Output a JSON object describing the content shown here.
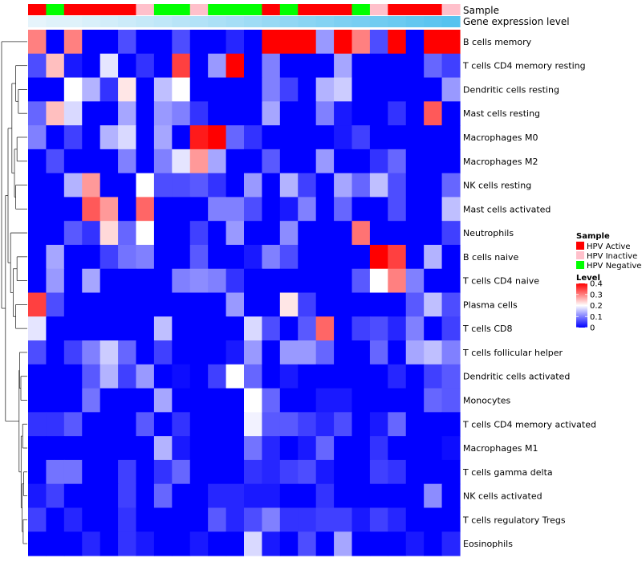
{
  "chart_data": {
    "type": "heatmap",
    "title": "",
    "annotation_rows": {
      "sample": "Sample",
      "gene_level": "Gene expression level"
    },
    "sample_groups": [
      "A",
      "N",
      "A",
      "A",
      "A",
      "A",
      "I",
      "N",
      "N",
      "I",
      "N",
      "N",
      "N",
      "A",
      "N",
      "A",
      "A",
      "A",
      "N",
      "I",
      "A",
      "A",
      "A",
      "I"
    ],
    "gene_expression_level": [
      0.02,
      0.03,
      0.03,
      0.04,
      0.05,
      0.06,
      0.07,
      0.08,
      0.09,
      0.1,
      0.11,
      0.12,
      0.13,
      0.14,
      0.15,
      0.16,
      0.17,
      0.18,
      0.19,
      0.2,
      0.21,
      0.22,
      0.23,
      0.24
    ],
    "rows": [
      "B cells memory",
      "T cells CD4 memory resting",
      "Dendritic cells resting",
      "Mast cells resting",
      "Macrophages M0",
      "Macrophages M2",
      "NK cells resting",
      "Mast cells activated",
      "Neutrophils",
      "B cells naive",
      "T cells CD4 naive",
      "Plasma cells",
      "T cells CD8",
      "T cells follicular helper",
      "Dendritic cells activated",
      "Monocytes",
      "T cells CD4 memory activated",
      "Macrophages M1",
      "T cells gamma delta",
      "NK cells activated",
      "T cells regulatory  Tregs",
      "Eosinophils"
    ],
    "values": [
      [
        0.3,
        0,
        0.3,
        0,
        0,
        0.06,
        0,
        0,
        0.06,
        0,
        0,
        0.03,
        0,
        0.4,
        0.4,
        0.4,
        0.12,
        0.4,
        0.3,
        0.06,
        0.4,
        0,
        0.4,
        0.4
      ],
      [
        0.06,
        0.25,
        0.02,
        0,
        0.18,
        0,
        0.04,
        0,
        0.35,
        0,
        0.12,
        0.4,
        0,
        0.1,
        0,
        0,
        0,
        0.13,
        0,
        0,
        0,
        0,
        0.08,
        0.05
      ],
      [
        0,
        0,
        0.2,
        0.14,
        0.04,
        0.22,
        0,
        0.15,
        0.2,
        0,
        0,
        0,
        0,
        0.1,
        0.05,
        0,
        0.14,
        0.16,
        0,
        0,
        0,
        0,
        0,
        0.12
      ],
      [
        0.08,
        0.25,
        0.17,
        0,
        0,
        0.13,
        0,
        0.12,
        0.1,
        0.04,
        0,
        0,
        0,
        0.13,
        0,
        0,
        0.1,
        0.02,
        0,
        0,
        0.04,
        0,
        0.33,
        0
      ],
      [
        0.1,
        0,
        0.05,
        0,
        0.14,
        0.17,
        0,
        0.13,
        0,
        0.38,
        0.4,
        0.08,
        0.04,
        0,
        0,
        0,
        0,
        0.02,
        0.05,
        0,
        0,
        0,
        0,
        0
      ],
      [
        0,
        0.06,
        0,
        0,
        0,
        0.1,
        0,
        0.1,
        0.18,
        0.28,
        0.13,
        0,
        0,
        0.07,
        0,
        0,
        0.12,
        0,
        0,
        0.04,
        0.08,
        0,
        0,
        0
      ],
      [
        0,
        0,
        0.14,
        0.28,
        0,
        0,
        0.2,
        0.06,
        0.06,
        0.07,
        0.04,
        0,
        0.12,
        0,
        0.14,
        0.05,
        0,
        0.13,
        0.08,
        0.15,
        0.06,
        0,
        0,
        0.08
      ],
      [
        0,
        0,
        0,
        0.33,
        0.28,
        0,
        0.32,
        0,
        0,
        0,
        0.1,
        0.1,
        0.06,
        0,
        0.02,
        0.1,
        0,
        0.08,
        0,
        0,
        0.06,
        0,
        0,
        0.15
      ],
      [
        0,
        0,
        0.07,
        0.04,
        0.23,
        0.08,
        0.2,
        0,
        0,
        0.05,
        0,
        0.12,
        0,
        0,
        0.11,
        0,
        0,
        0,
        0.31,
        0,
        0,
        0,
        0,
        0.05
      ],
      [
        0,
        0.13,
        0,
        0,
        0.05,
        0.09,
        0.1,
        0,
        0,
        0.07,
        0,
        0,
        0.02,
        0.1,
        0.06,
        0,
        0,
        0,
        0,
        0.4,
        0.35,
        0,
        0.14,
        0
      ],
      [
        0,
        0.12,
        0,
        0.13,
        0,
        0,
        0,
        0,
        0.1,
        0.11,
        0.1,
        0.04,
        0,
        0,
        0,
        0,
        0,
        0,
        0.07,
        0.2,
        0.3,
        0.1,
        0,
        0
      ],
      [
        0.35,
        0.06,
        0,
        0,
        0,
        0,
        0,
        0,
        0,
        0,
        0,
        0.12,
        0,
        0,
        0.22,
        0.05,
        0,
        0,
        0,
        0,
        0,
        0.07,
        0.15,
        0.06
      ],
      [
        0.18,
        0,
        0,
        0,
        0,
        0,
        0,
        0.15,
        0,
        0,
        0,
        0,
        0.17,
        0.06,
        0,
        0.07,
        0.32,
        0,
        0.05,
        0.06,
        0.03,
        0.1,
        0,
        0.05
      ],
      [
        0.06,
        0,
        0.05,
        0.1,
        0.16,
        0.08,
        0,
        0.05,
        0,
        0,
        0,
        0.02,
        0.12,
        0,
        0.12,
        0.12,
        0.08,
        0,
        0,
        0.08,
        0,
        0.13,
        0.15,
        0.1
      ],
      [
        0,
        0,
        0,
        0.07,
        0.14,
        0.05,
        0.12,
        0,
        0.01,
        0,
        0.05,
        0.2,
        0.08,
        0,
        0.02,
        0,
        0,
        0,
        0,
        0,
        0.03,
        0,
        0.05,
        0.07
      ],
      [
        0,
        0,
        0,
        0.09,
        0,
        0,
        0,
        0.13,
        0,
        0,
        0,
        0,
        0.2,
        0.08,
        0,
        0,
        0.02,
        0.02,
        0,
        0,
        0,
        0,
        0.08,
        0.07
      ],
      [
        0.04,
        0.04,
        0.07,
        0,
        0,
        0,
        0.07,
        0,
        0.04,
        0,
        0,
        0,
        0.19,
        0.07,
        0.07,
        0.05,
        0.03,
        0.06,
        0,
        0.02,
        0.08,
        0,
        0,
        0
      ],
      [
        0,
        0,
        0,
        0,
        0,
        0,
        0,
        0.14,
        0.02,
        0,
        0,
        0,
        0.09,
        0.03,
        0,
        0.02,
        0.08,
        0,
        0,
        0.04,
        0,
        0,
        0,
        0.01
      ],
      [
        0,
        0.09,
        0.09,
        0,
        0,
        0.05,
        0,
        0.04,
        0.08,
        0,
        0,
        0,
        0.04,
        0.03,
        0.05,
        0.06,
        0.02,
        0,
        0,
        0.05,
        0.04,
        0,
        0,
        0
      ],
      [
        0.02,
        0.05,
        0,
        0,
        0,
        0.05,
        0,
        0.08,
        0,
        0,
        0.03,
        0.03,
        0.02,
        0.02,
        0,
        0,
        0.04,
        0,
        0,
        0,
        0,
        0,
        0.11,
        0
      ],
      [
        0.05,
        0,
        0.03,
        0,
        0,
        0.04,
        0,
        0,
        0,
        0,
        0.07,
        0.03,
        0.06,
        0.1,
        0.04,
        0.04,
        0.05,
        0.05,
        0.02,
        0.05,
        0.03,
        0,
        0,
        0
      ],
      [
        0,
        0,
        0,
        0.03,
        0,
        0.04,
        0.02,
        0,
        0,
        0.02,
        0,
        0,
        0.17,
        0.02,
        0,
        0.06,
        0,
        0.13,
        0,
        0,
        0,
        0.02,
        0,
        0.03
      ]
    ],
    "legend_sample": {
      "title": "Sample",
      "items": [
        {
          "key": "A",
          "label": "HPV Active",
          "color": "#ff0000"
        },
        {
          "key": "I",
          "label": "HPV Inactive",
          "color": "#ffc0cb"
        },
        {
          "key": "N",
          "label": "HPV Negative",
          "color": "#00ff00"
        }
      ]
    },
    "legend_level": {
      "title": "Level",
      "ticks": [
        0.4,
        0.3,
        0.2,
        0.1,
        0
      ],
      "tick_labels": [
        "0.4",
        "0.3",
        "0.2",
        "0.1",
        "0"
      ],
      "range": [
        0,
        0.4
      ],
      "colors": {
        "low": "#0000ff",
        "mid": "#ffffff",
        "high": "#ff0000"
      },
      "gene_color_low": "#e6f4fb",
      "gene_color_high": "#56c3ef"
    }
  }
}
